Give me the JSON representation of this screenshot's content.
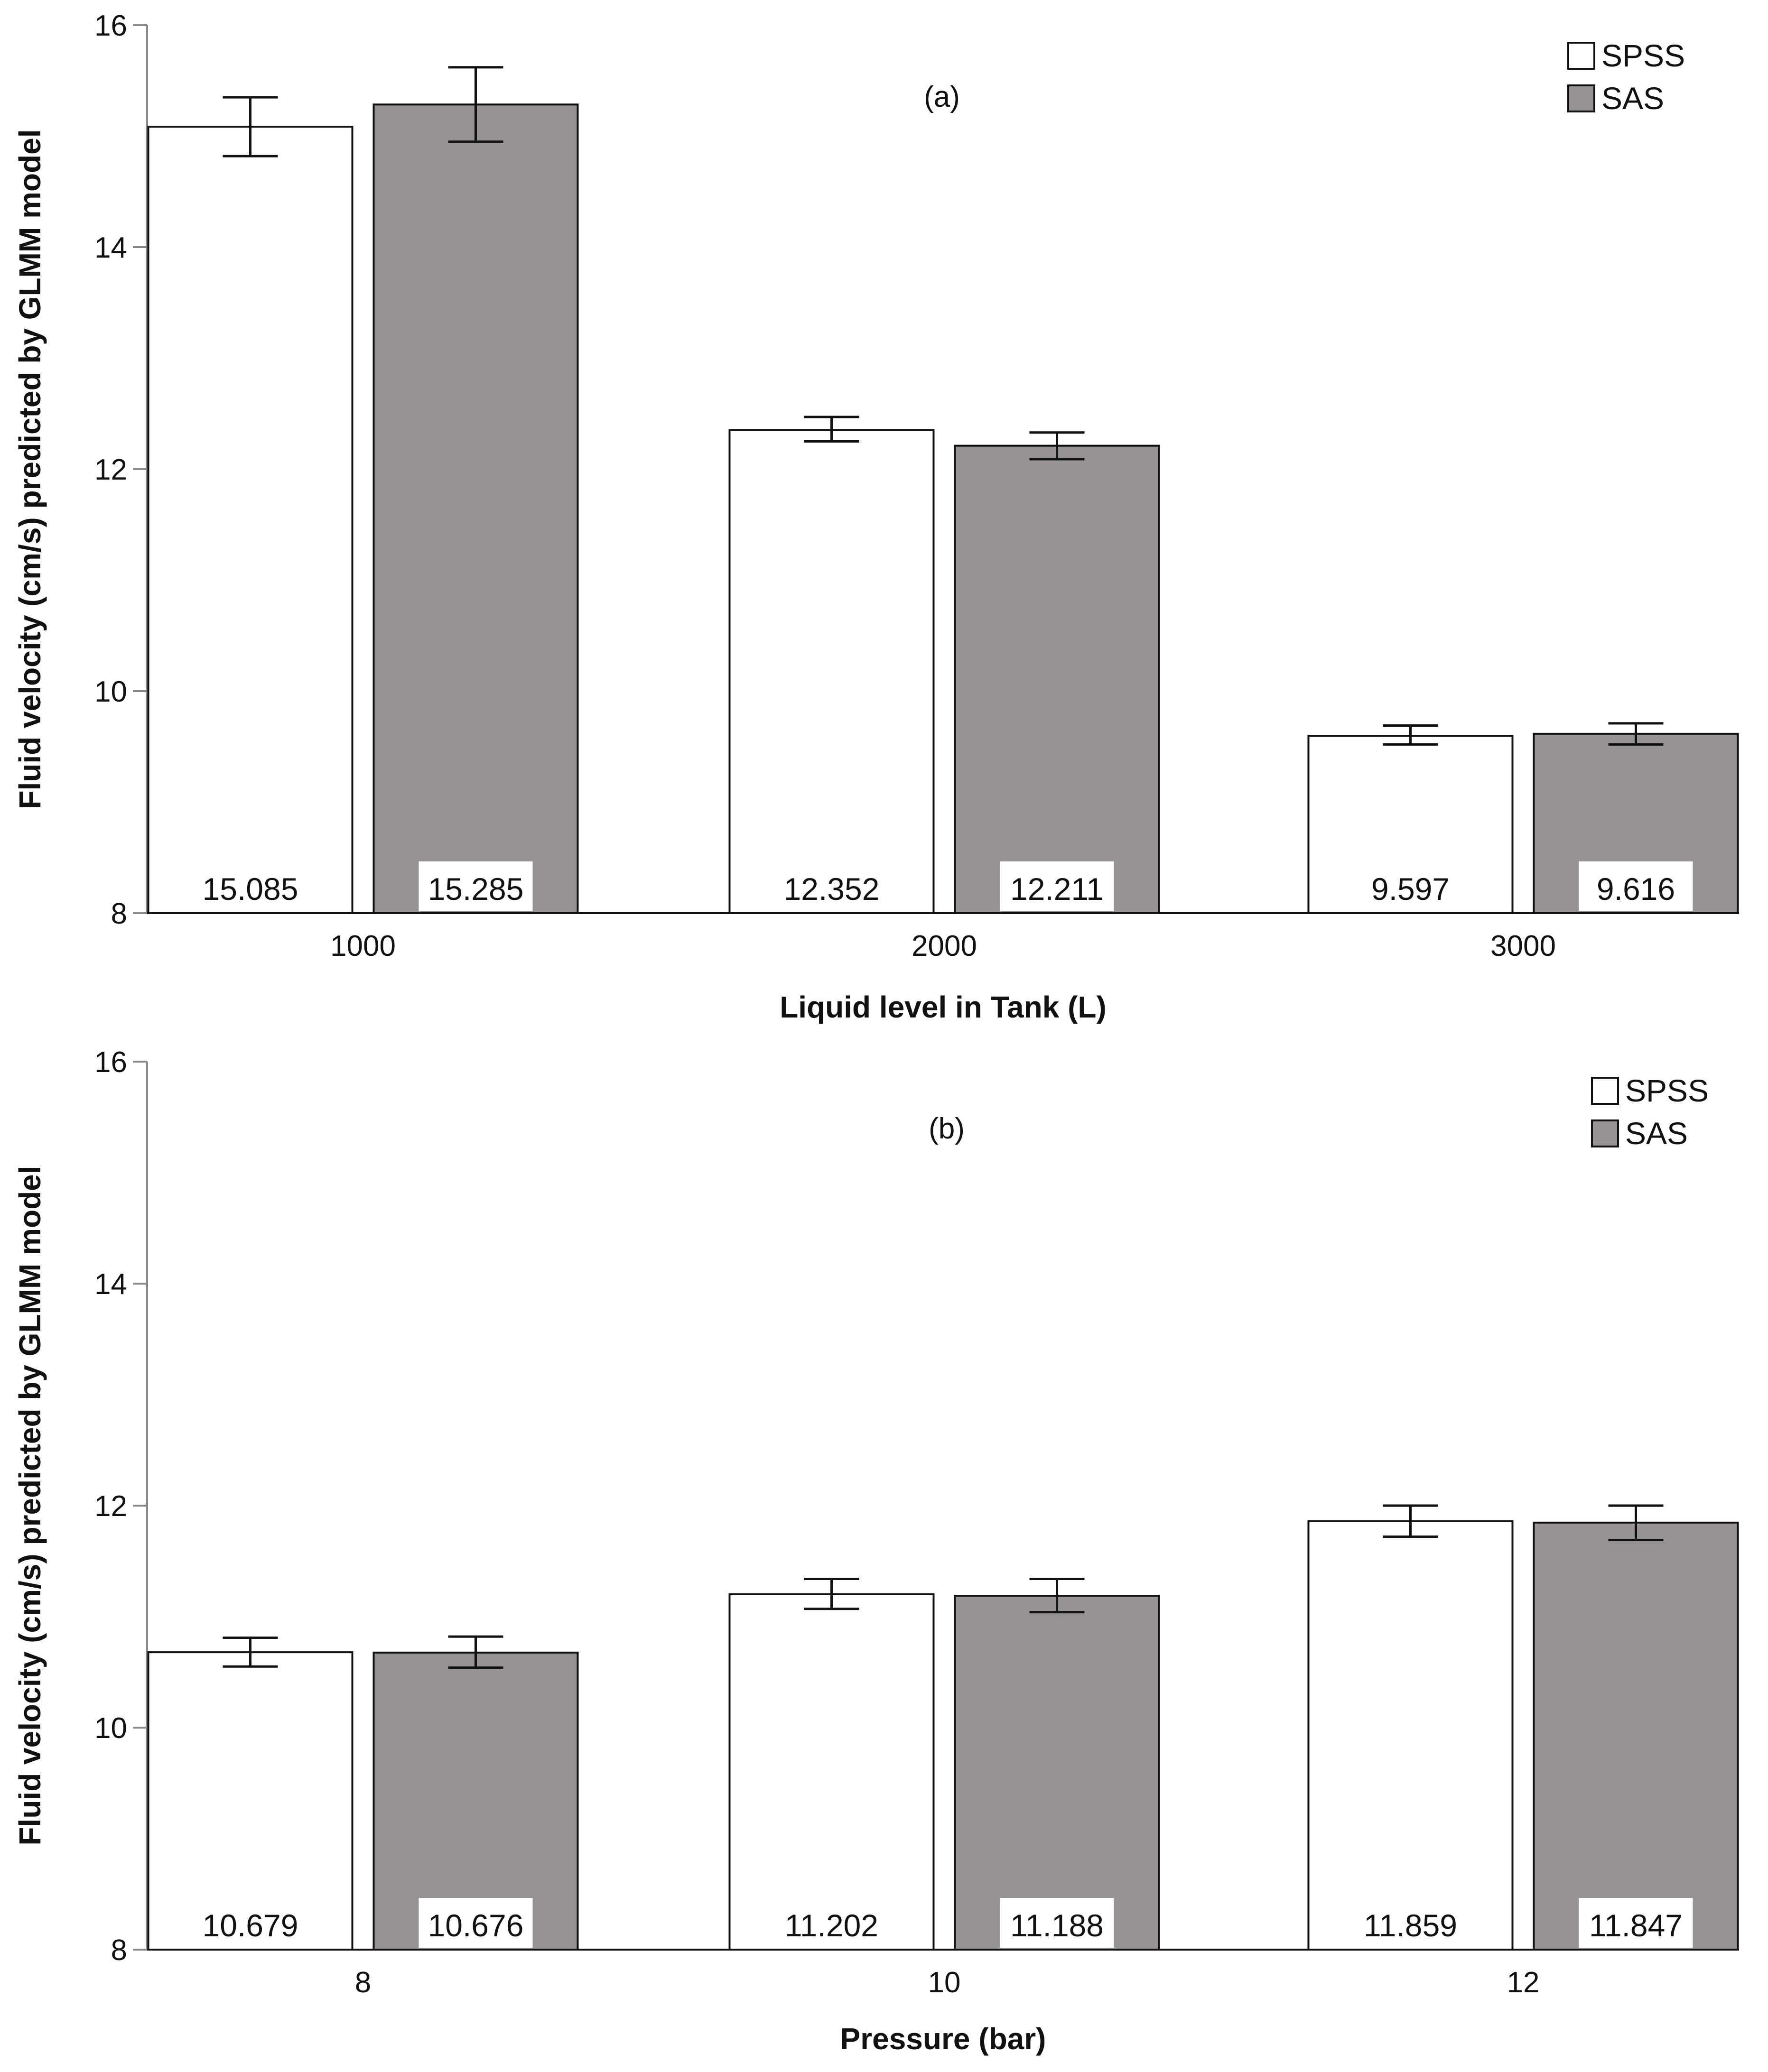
{
  "colors": {
    "spss_fill": "#ffffff",
    "sas_fill": "#989393",
    "stroke": "#111111",
    "tick": "#888888"
  },
  "chart_data": [
    {
      "type": "bar",
      "panel_label": "(a)",
      "categories": [
        "1000",
        "2000",
        "3000"
      ],
      "xlabel": "Liquid level in Tank (L)",
      "ylabel": "Fluid velocity (cm/s) predicted by GLMM model",
      "ylim": [
        8,
        16
      ],
      "yticks": [
        "8",
        "10",
        "12",
        "14",
        "16"
      ],
      "grid": false,
      "legend_position": "top-right",
      "series": [
        {
          "name": "SPSS",
          "values": [
            15.085,
            12.352,
            9.597
          ],
          "labels": [
            "15.085",
            "12.352",
            "9.597"
          ],
          "err_low": [
            14.82,
            12.25,
            9.52
          ],
          "err_high": [
            15.35,
            12.47,
            9.69
          ]
        },
        {
          "name": "SAS",
          "values": [
            15.285,
            12.211,
            9.616
          ],
          "labels": [
            "15.285",
            "12.211",
            "9.616"
          ],
          "err_low": [
            14.95,
            12.09,
            9.52
          ],
          "err_high": [
            15.62,
            12.33,
            9.71
          ]
        }
      ]
    },
    {
      "type": "bar",
      "panel_label": "(b)",
      "categories": [
        "8",
        "10",
        "12"
      ],
      "xlabel": "Pressure (bar)",
      "ylabel": "Fluid velocity (cm/s) predicted by GLMM model",
      "ylim": [
        8,
        16
      ],
      "yticks": [
        "8",
        "10",
        "12",
        "14",
        "16"
      ],
      "grid": false,
      "legend_position": "top-right",
      "series": [
        {
          "name": "SPSS",
          "values": [
            10.679,
            11.202,
            11.859
          ],
          "labels": [
            "10.679",
            "11.202",
            "11.859"
          ],
          "err_low": [
            10.55,
            11.07,
            11.72
          ],
          "err_high": [
            10.81,
            11.34,
            12.0
          ]
        },
        {
          "name": "SAS",
          "values": [
            10.676,
            11.188,
            11.847
          ],
          "labels": [
            "10.676",
            "11.188",
            "11.847"
          ],
          "err_low": [
            10.54,
            11.04,
            11.69
          ],
          "err_high": [
            10.82,
            11.34,
            12.0
          ]
        }
      ]
    }
  ]
}
